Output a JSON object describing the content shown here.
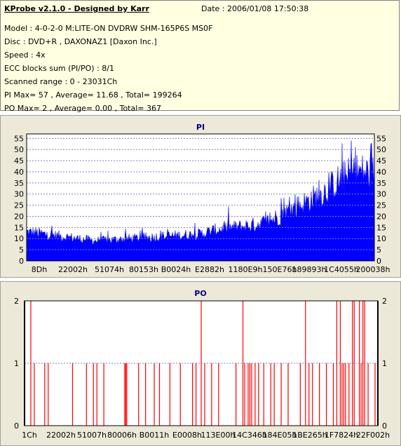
{
  "header": {
    "title": "KProbe v2.1.0 - Designed by Karr",
    "date": "Date : 2006/01/08 17:50:38",
    "lines": [
      "Model : 4-0-2-0 M:LITE-ON DVDRW SHM-165P6S MS0F",
      "Disc : DVD+R , DAXONAZ1 [Daxon Inc.]",
      "Speed : 4x",
      "ECC blocks sum (PI/PO) : 8/1",
      "Scanned range : 0 - 23031Ch",
      "PI Max= 57 , Average= 11.68 , Total= 199264",
      "PO Max= 2 , Average= 0.00 , Total= 367"
    ]
  },
  "colors": {
    "panel_bg": "#ece9d8",
    "plot_bg": "#ffffff",
    "pi_fill": "#0000ff",
    "po_bar": "#ff0000",
    "title": "#000080",
    "grid": "#8080c0"
  },
  "chart_data": [
    {
      "type": "area",
      "title": "PI",
      "ylim": [
        0,
        57
      ],
      "yticks": [
        0,
        5,
        10,
        15,
        20,
        25,
        30,
        35,
        40,
        45,
        50,
        55
      ],
      "xtick_labels": [
        "8Dh",
        "22002h",
        "51074h",
        "80153h",
        "B0024h",
        "E2882h",
        "1180E9h",
        "150E76h",
        "189893h",
        "1C4055h",
        "200038h"
      ],
      "grid": true,
      "profile_x": [
        0,
        0.1,
        0.2,
        0.3,
        0.4,
        0.5,
        0.55,
        0.6,
        0.65,
        0.7,
        0.75,
        0.8,
        0.85,
        0.9,
        0.95,
        1.0
      ],
      "profile_y": [
        13,
        11,
        9,
        10,
        11,
        12,
        14,
        15,
        16,
        18,
        22,
        26,
        30,
        36,
        40,
        39
      ],
      "max": 57,
      "average": 11.68
    },
    {
      "type": "bar",
      "title": "PO",
      "ylim": [
        0,
        2
      ],
      "yticks": [
        0,
        1,
        2
      ],
      "xtick_labels": [
        "1Ch",
        "22002h",
        "51007h",
        "80006h",
        "B0011h",
        "E0008h",
        "113E00h",
        "14C346h",
        "184E05h",
        "1BE265h",
        "1F7824h",
        "22F002h"
      ],
      "grid": true,
      "events": [
        {
          "x": 0.01,
          "v": 2
        },
        {
          "x": 0.02,
          "v": 1
        },
        {
          "x": 0.05,
          "v": 1
        },
        {
          "x": 0.06,
          "v": 1
        },
        {
          "x": 0.13,
          "v": 1
        },
        {
          "x": 0.17,
          "v": 1
        },
        {
          "x": 0.19,
          "v": 1
        },
        {
          "x": 0.2,
          "v": 1
        },
        {
          "x": 0.22,
          "v": 1
        },
        {
          "x": 0.28,
          "v": 1
        },
        {
          "x": 0.283,
          "v": 1
        },
        {
          "x": 0.286,
          "v": 1
        },
        {
          "x": 0.32,
          "v": 1
        },
        {
          "x": 0.34,
          "v": 1
        },
        {
          "x": 0.365,
          "v": 1
        },
        {
          "x": 0.38,
          "v": 1
        },
        {
          "x": 0.41,
          "v": 1
        },
        {
          "x": 0.44,
          "v": 1
        },
        {
          "x": 0.475,
          "v": 1
        },
        {
          "x": 0.485,
          "v": 1
        },
        {
          "x": 0.5,
          "v": 2
        },
        {
          "x": 0.51,
          "v": 1
        },
        {
          "x": 0.53,
          "v": 1
        },
        {
          "x": 0.55,
          "v": 1
        },
        {
          "x": 0.6,
          "v": 1
        },
        {
          "x": 0.62,
          "v": 2
        },
        {
          "x": 0.625,
          "v": 1
        },
        {
          "x": 0.635,
          "v": 1
        },
        {
          "x": 0.64,
          "v": 1
        },
        {
          "x": 0.645,
          "v": 1
        },
        {
          "x": 0.655,
          "v": 1
        },
        {
          "x": 0.665,
          "v": 1
        },
        {
          "x": 0.68,
          "v": 1
        },
        {
          "x": 0.7,
          "v": 1
        },
        {
          "x": 0.71,
          "v": 1
        },
        {
          "x": 0.73,
          "v": 1
        },
        {
          "x": 0.75,
          "v": 1
        },
        {
          "x": 0.785,
          "v": 1
        },
        {
          "x": 0.8,
          "v": 2
        },
        {
          "x": 0.81,
          "v": 1
        },
        {
          "x": 0.82,
          "v": 1
        },
        {
          "x": 0.84,
          "v": 1
        },
        {
          "x": 0.86,
          "v": 1
        },
        {
          "x": 0.88,
          "v": 1
        },
        {
          "x": 0.89,
          "v": 2
        },
        {
          "x": 0.9,
          "v": 2
        },
        {
          "x": 0.905,
          "v": 1
        },
        {
          "x": 0.91,
          "v": 1
        },
        {
          "x": 0.915,
          "v": 1
        },
        {
          "x": 0.925,
          "v": 1
        },
        {
          "x": 0.935,
          "v": 2
        },
        {
          "x": 0.94,
          "v": 2
        },
        {
          "x": 0.955,
          "v": 2
        },
        {
          "x": 0.96,
          "v": 1
        },
        {
          "x": 0.965,
          "v": 2
        },
        {
          "x": 0.97,
          "v": 2
        },
        {
          "x": 0.98,
          "v": 1
        },
        {
          "x": 1.0,
          "v": 1
        }
      ],
      "max": 2,
      "average": 0.0
    }
  ]
}
